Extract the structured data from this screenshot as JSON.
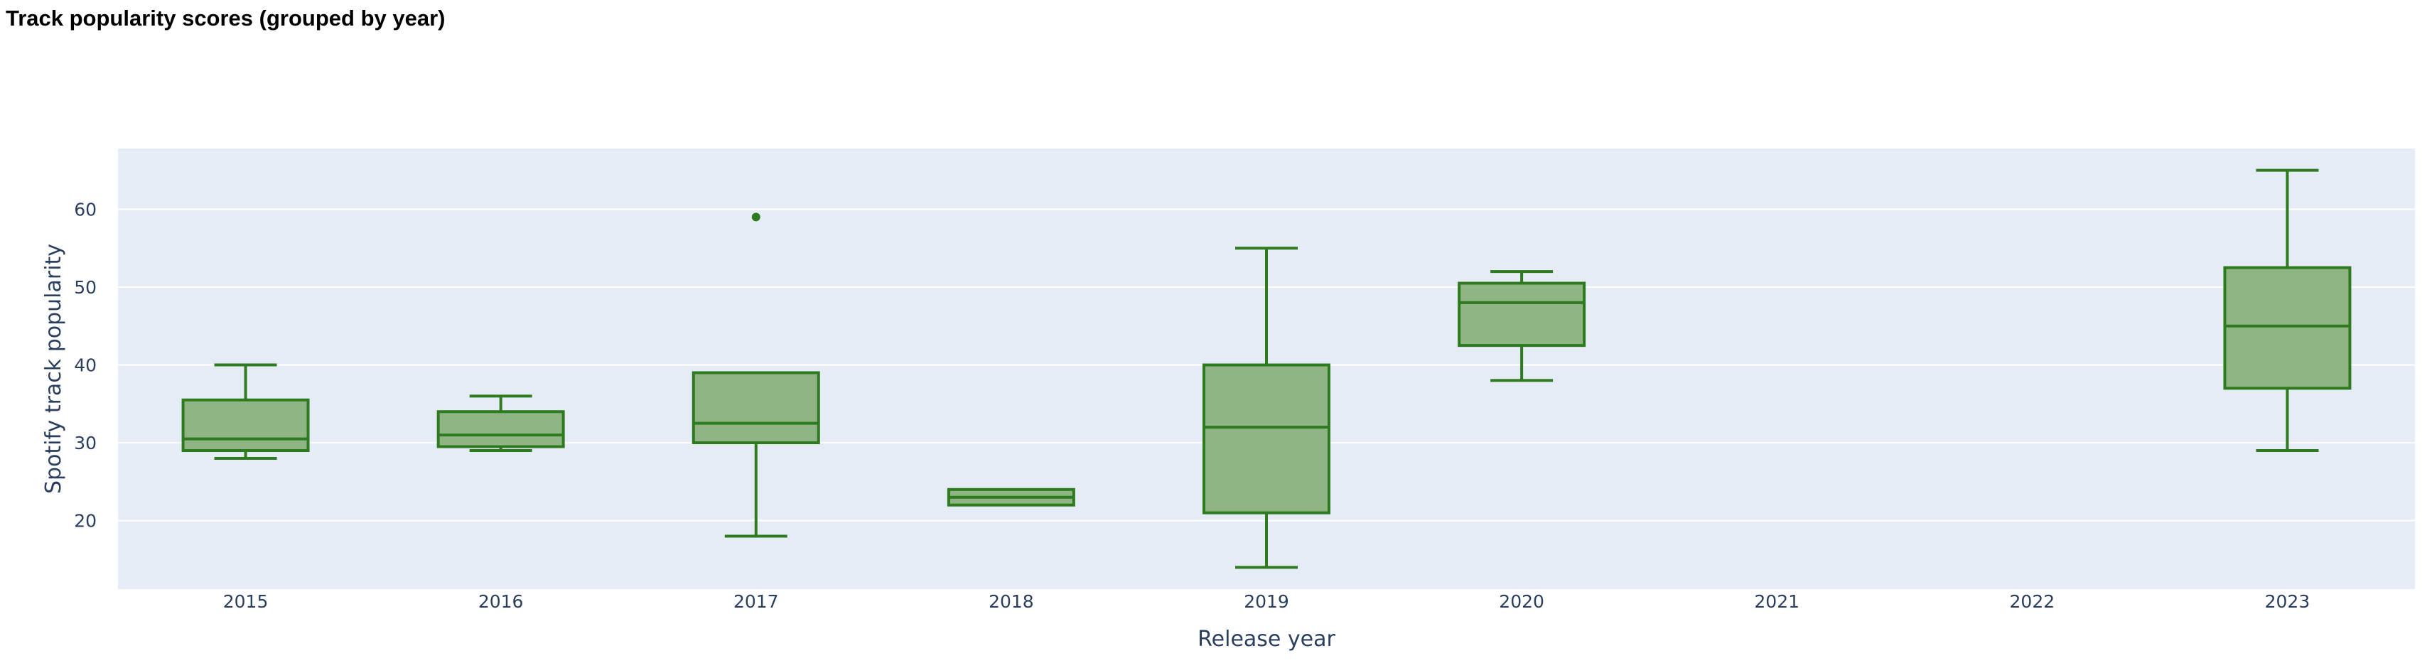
{
  "chart_data": {
    "type": "box",
    "title": "Track popularity scores (grouped by year)",
    "xlabel": "Release year",
    "ylabel": "Spotify track popularity",
    "categories": [
      "2015",
      "2016",
      "2017",
      "2018",
      "2019",
      "2020",
      "2021",
      "2022",
      "2023"
    ],
    "y_ticks": [
      20,
      30,
      40,
      50,
      60
    ],
    "ylim": [
      11.2,
      67.8
    ],
    "grid": true,
    "colors": {
      "box_fill": "#8fb584",
      "box_line": "#2e7a1e",
      "plot_bg": "#e5ecf6",
      "grid": "#ffffff",
      "text": "#2a3f5f"
    },
    "boxes": [
      {
        "category": "2015",
        "min": 28,
        "q1": 29,
        "median": 30.5,
        "q3": 35.5,
        "max": 40,
        "outliers": []
      },
      {
        "category": "2016",
        "min": 29,
        "q1": 29.5,
        "median": 31,
        "q3": 34,
        "max": 36,
        "outliers": []
      },
      {
        "category": "2017",
        "min": 18,
        "q1": 30,
        "median": 32.5,
        "q3": 39,
        "max": 39,
        "outliers": [
          59
        ]
      },
      {
        "category": "2018",
        "min": 22,
        "q1": 22,
        "median": 23,
        "q3": 24,
        "max": 24,
        "outliers": []
      },
      {
        "category": "2019",
        "min": 14,
        "q1": 21,
        "median": 32,
        "q3": 40,
        "max": 55,
        "outliers": []
      },
      {
        "category": "2020",
        "min": 38,
        "q1": 42.5,
        "median": 48,
        "q3": 50.5,
        "max": 52,
        "outliers": []
      },
      {
        "category": "2023",
        "min": 29,
        "q1": 37,
        "median": 45,
        "q3": 52.5,
        "max": 65,
        "outliers": []
      }
    ]
  }
}
